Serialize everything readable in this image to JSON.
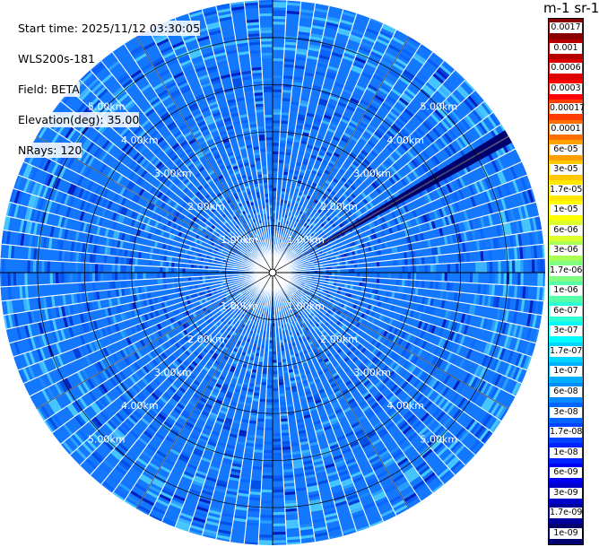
{
  "header": {
    "start_time": "Start time: 2025/11/12 03:30:05",
    "instrument": "WLS200s-181",
    "field": "Field: BETA",
    "elevation": "Elevation(deg): 35.00",
    "nrays": "NRays: 120"
  },
  "colorbar": {
    "unit_label": "m-1 sr-1",
    "ticks": [
      "0.0017",
      "0.001",
      "0.0006",
      "0.0003",
      "0.00017",
      "0.0001",
      "6e-05",
      "3e-05",
      "1.7e-05",
      "1e-05",
      "6e-06",
      "3e-06",
      "1.7e-06",
      "1e-06",
      "6e-07",
      "3e-07",
      "1.7e-07",
      "1e-07",
      "6e-08",
      "3e-08",
      "1.7e-08",
      "1e-08",
      "6e-09",
      "3e-09",
      "1.7e-09",
      "1e-09"
    ],
    "colors": [
      "#8b0000",
      "#b40000",
      "#dc0000",
      "#ff0000",
      "#ff3c00",
      "#ff6e00",
      "#ffa000",
      "#ffc800",
      "#ffe800",
      "#ffff00",
      "#dcff2c",
      "#aaff55",
      "#80ff80",
      "#55ffaa",
      "#2cffd4",
      "#00fcff",
      "#00d4ff",
      "#00b0ff",
      "#008cff",
      "#0066ff",
      "#0044ff",
      "#0022ff",
      "#0000f0",
      "#0000c8",
      "#00009c",
      "#00006e"
    ]
  },
  "chart_data": {
    "type": "heatmap",
    "projection": "polar PPI",
    "field": "BETA",
    "range_rings_km": [
      1,
      2,
      3,
      4,
      5
    ],
    "ring_labels": [
      "1.00km",
      "2.00km",
      "3.00km",
      "4.00km",
      "5.00km"
    ],
    "max_range_km": 5.8,
    "n_rays": 120,
    "scale": "log",
    "value_range": [
      1e-09,
      0.0017
    ],
    "dominant_value_range": [
      3e-08,
      1.7e-07
    ],
    "anomaly_ray_azimuth_deg": 60,
    "anomaly_ray_value": 1.7e-09
  }
}
